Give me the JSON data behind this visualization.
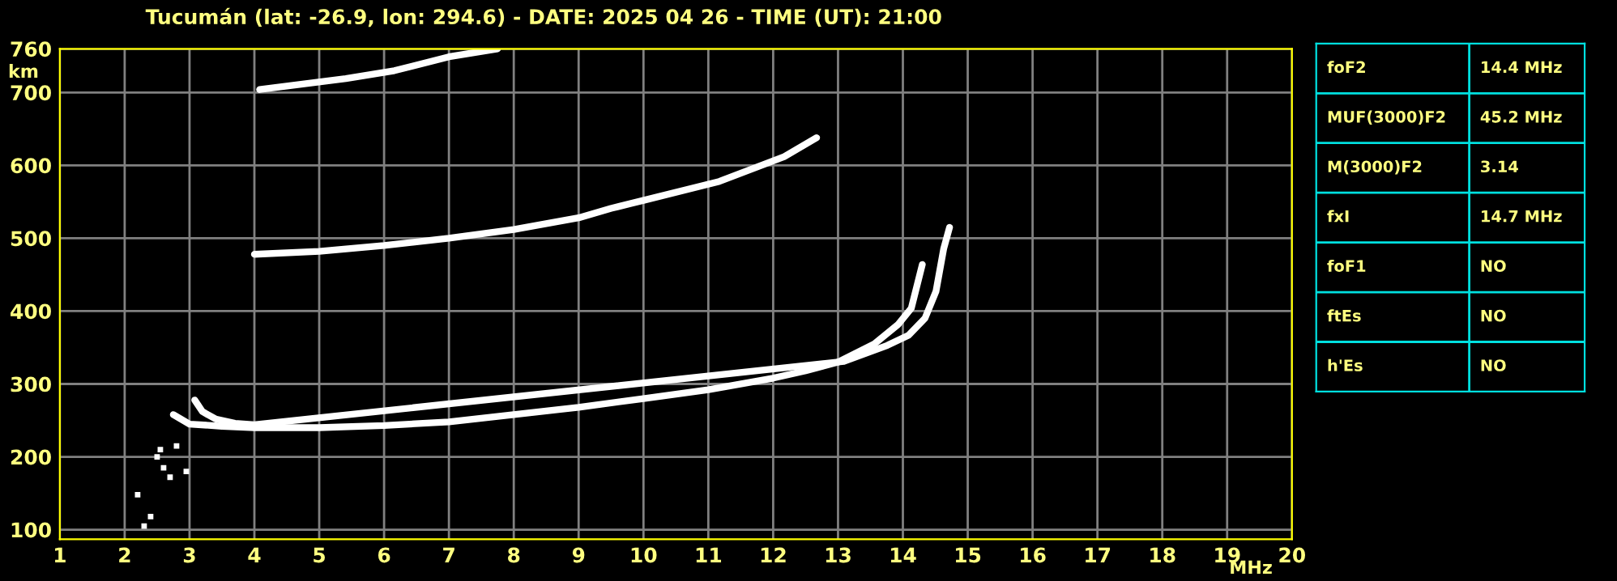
{
  "chart_data": [
    {
      "type": "line",
      "title": "Tucumán (lat: -26.9, lon: 294.6) - DATE: 2025 04 26 - TIME (UT): 21:00",
      "xlabel": "MHz",
      "ylabel": "km",
      "xlim": [
        1,
        20
      ],
      "ylim": [
        87,
        760
      ],
      "xticks": [
        1,
        2,
        3,
        4,
        5,
        6,
        7,
        8,
        9,
        10,
        11,
        12,
        13,
        14,
        15,
        16,
        17,
        18,
        19,
        20
      ],
      "yticks": [
        100,
        200,
        300,
        400,
        500,
        600,
        700,
        760
      ],
      "grid": true,
      "line_style": "solid",
      "marker": "none",
      "series": [
        {
          "color": "#ffffff",
          "x": [
            2.75,
            3.0,
            3.5,
            4.0,
            5.0,
            6.0,
            7.0,
            8.0,
            9.0,
            10.0,
            11.0,
            12.0,
            12.5,
            13.0,
            13.56,
            13.93,
            14.13,
            14.3
          ],
          "values": [
            258,
            245,
            242,
            240,
            240,
            243,
            248,
            258,
            268,
            280,
            292,
            308,
            318,
            330,
            355,
            382,
            404,
            464
          ]
        },
        {
          "color": "#ffffff",
          "x": [
            3.08,
            3.2,
            3.4,
            3.7,
            4.0,
            13.09,
            13.76,
            14.09,
            14.34,
            14.51,
            14.63,
            14.72
          ],
          "values": [
            278,
            262,
            252,
            246,
            244,
            331,
            353,
            367,
            390,
            427,
            486,
            515
          ]
        },
        {
          "color": "#ffffff",
          "x": [
            4.0,
            5.0,
            6.0,
            7.0,
            8.0,
            9.0,
            9.5,
            10.0,
            11.17,
            12.17,
            12.67
          ],
          "values": [
            478,
            482,
            490,
            500,
            512,
            528,
            541,
            552,
            578,
            612,
            638
          ]
        },
        {
          "color": "#ffffff",
          "x": [
            4.08,
            5.41,
            6.16,
            7.0,
            7.75
          ],
          "values": [
            704,
            719,
            730,
            749,
            760
          ]
        },
        {
          "type": "scatter",
          "marker": "square",
          "color": "#ffffff",
          "x": [
            2.3,
            2.4,
            2.5,
            2.55,
            2.6,
            2.7,
            2.8,
            2.95,
            2.2
          ],
          "values": [
            105,
            118,
            200,
            210,
            185,
            172,
            215,
            180,
            148
          ]
        }
      ]
    },
    {
      "type": "other",
      "annotations": [
        "foF2",
        "14.4 MHz",
        "MUF(3000)F2",
        "45.2 MHz",
        "M(3000)F2",
        "3.14",
        "fxI",
        "14.7 MHz",
        "foF1",
        "NO",
        "ftEs",
        "NO",
        "h'Es",
        "NO"
      ]
    }
  ]
}
